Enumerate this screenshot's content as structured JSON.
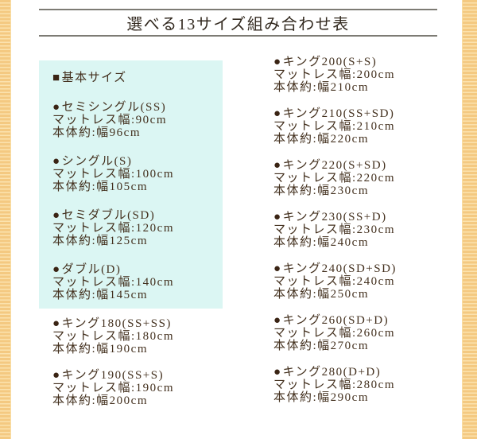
{
  "title": "選べる13サイズ組み合わせ表",
  "icons": {
    "square_bullet": "■",
    "circle_bullet": "●"
  },
  "basic_sizes": {
    "header": "基本サイズ",
    "items": [
      {
        "name": "セミシングル(SS)",
        "mattress": "マットレス幅:90cm",
        "body": "本体約:幅96cm"
      },
      {
        "name": "シングル(S)",
        "mattress": "マットレス幅:100cm",
        "body": "本体約:幅105cm"
      },
      {
        "name": "セミダブル(SD)",
        "mattress": "マットレス幅:120cm",
        "body": "本体約:幅125cm"
      },
      {
        "name": "ダブル(D)",
        "mattress": "マットレス幅:140cm",
        "body": "本体約:幅145cm"
      }
    ]
  },
  "left_column_items": [
    {
      "name": "キング180(SS+SS)",
      "mattress": "マットレス幅:180cm",
      "body": "本体約:幅190cm"
    },
    {
      "name": "キング190(SS+S)",
      "mattress": "マットレス幅:190cm",
      "body": "本体約:幅200cm"
    }
  ],
  "right_column_items": [
    {
      "name": "キング200(S+S)",
      "mattress": "マットレス幅:200cm",
      "body": "本体約:幅210cm"
    },
    {
      "name": "キング210(SS+SD)",
      "mattress": "マットレス幅:210cm",
      "body": "本体約:幅220cm"
    },
    {
      "name": "キング220(S+SD)",
      "mattress": "マットレス幅:220cm",
      "body": "本体約:幅230cm"
    },
    {
      "name": "キング230(SS+D)",
      "mattress": "マットレス幅:230cm",
      "body": "本体約:幅240cm"
    },
    {
      "name": "キング240(SD+SD)",
      "mattress": "マットレス幅:240cm",
      "body": "本体約:幅250cm"
    },
    {
      "name": "キング260(SD+D)",
      "mattress": "マットレス幅:260cm",
      "body": "本体約:幅270cm"
    },
    {
      "name": "キング280(D+D)",
      "mattress": "マットレス幅:280cm",
      "body": "本体約:幅290cm"
    }
  ],
  "colors": {
    "text": "#43301e",
    "bullet": "#3a2414",
    "highlight_box": "#dbf6f3",
    "stripe_base": "#f4c981",
    "stripe_light": "#fbe2ae",
    "rule_line": "#7d7b74"
  }
}
